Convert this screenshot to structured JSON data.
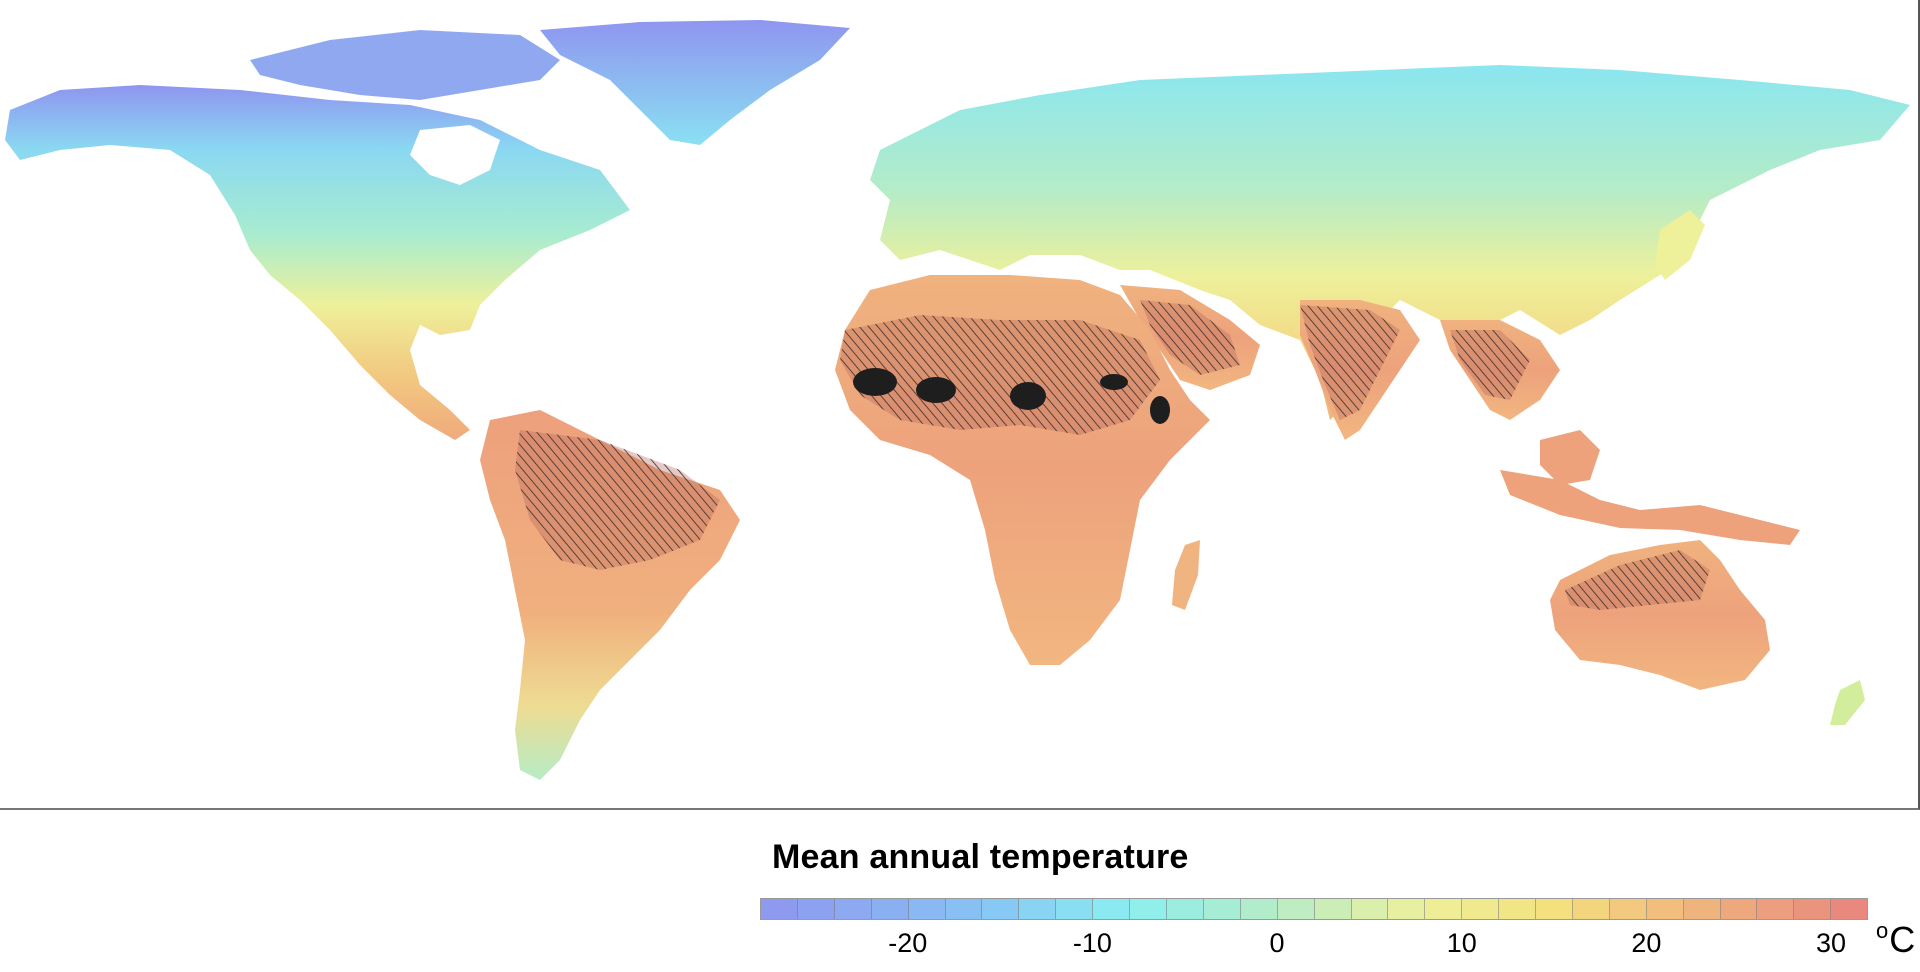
{
  "legend": {
    "title": "Mean annual temperature",
    "unit": "°C",
    "unit_degree": "o",
    "unit_letter": "C",
    "range": [
      -28,
      32
    ],
    "tick_values": [
      -20,
      -10,
      0,
      10,
      20,
      30
    ],
    "tick_labels": [
      "-20",
      "-10",
      "0",
      "10",
      "20",
      "30"
    ],
    "color_stops": [
      {
        "value": -28,
        "color": "#8f95f0"
      },
      {
        "value": -15,
        "color": "#88c8f4"
      },
      {
        "value": -8,
        "color": "#8aeef0"
      },
      {
        "value": 0,
        "color": "#b6ecc6"
      },
      {
        "value": 8,
        "color": "#eef09a"
      },
      {
        "value": 15,
        "color": "#f4e07e"
      },
      {
        "value": 22,
        "color": "#f0b87e"
      },
      {
        "value": 32,
        "color": "#e8847e"
      }
    ],
    "cell_count": 30
  },
  "map": {
    "ocean_color": "#ffffff",
    "hatch_color": "#3a2a2a",
    "hotspot_color": "#1e1e1e"
  }
}
